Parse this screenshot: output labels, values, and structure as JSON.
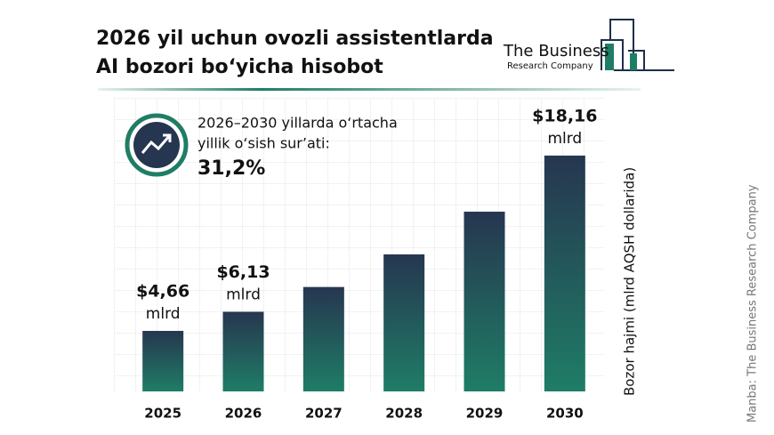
{
  "chart_data": {
    "type": "bar",
    "title": [
      "2026 yil uchun ovozli assistentlarda",
      "AI bozori bo‘yicha hisobot"
    ],
    "logo": [
      "The Business",
      "Research Company"
    ],
    "annotation": [
      "2026–2030 yillarda o‘rtacha",
      "yillik o‘sish sur’ati:",
      "31,2%"
    ],
    "y_label": "Bozor hajmi (mlrd AQSH dollarida)",
    "source": "Manba: The Business Research Company",
    "categories": [
      "2025",
      "2026",
      "2027",
      "2028",
      "2029",
      "2030"
    ],
    "values": [
      4.66,
      6.13,
      8.04,
      10.55,
      13.84,
      18.16
    ],
    "value_labels": [
      "$4,66",
      "$6,13",
      null,
      null,
      null,
      "$18,16"
    ],
    "value_unit": "mlrd",
    "color": [
      "#263650",
      "#1f7d66"
    ],
    "ylim": [
      0,
      20
    ]
  }
}
